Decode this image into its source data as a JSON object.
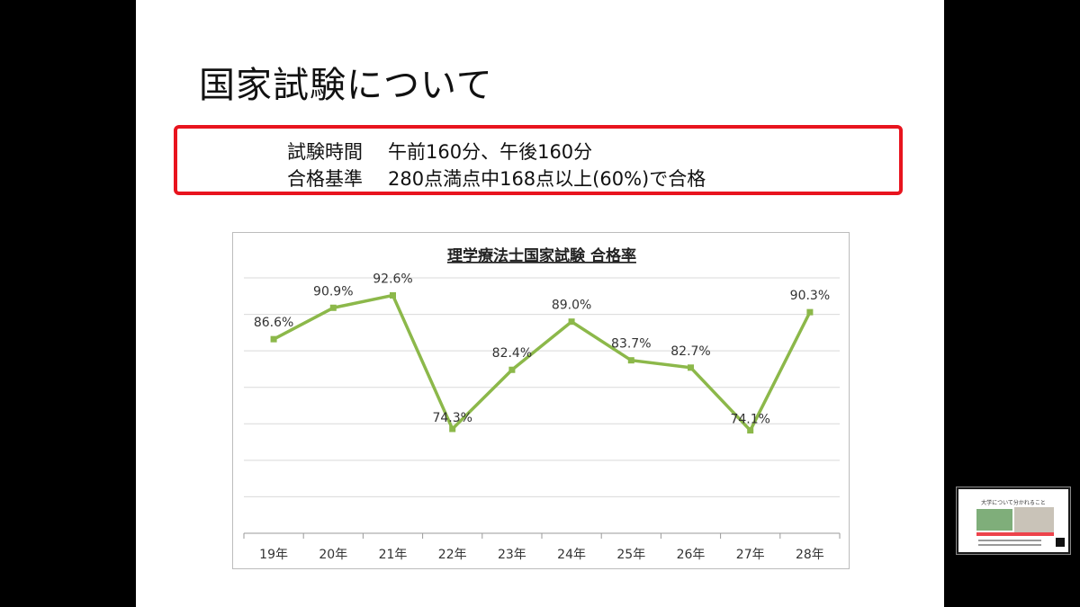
{
  "slide": {
    "title": "国家試験について",
    "info": [
      {
        "label": "試験時間",
        "value": "午前160分、午後160分"
      },
      {
        "label": "合格基準",
        "value": "280点満点中168点以上(60%)で合格"
      }
    ]
  },
  "colors": {
    "accent_border": "#e8141e",
    "line_series": "#8cb84a"
  },
  "chart_data": {
    "type": "line",
    "title": "理学療法士国家試験  合格率",
    "categories": [
      "19年",
      "20年",
      "21年",
      "22年",
      "23年",
      "24年",
      "25年",
      "26年",
      "27年",
      "28年"
    ],
    "values": [
      86.6,
      90.9,
      92.6,
      74.3,
      82.4,
      89.0,
      83.7,
      82.7,
      74.1,
      90.3
    ],
    "labels": [
      "86.6%",
      "90.9%",
      "92.6%",
      "74.3%",
      "82.4%",
      "89.0%",
      "83.7%",
      "82.7%",
      "74.1%",
      "90.3%"
    ],
    "ylim": [
      0,
      100
    ],
    "grid": true,
    "legend": "none"
  },
  "thumbnail": {
    "title": "大学について分かれること"
  }
}
